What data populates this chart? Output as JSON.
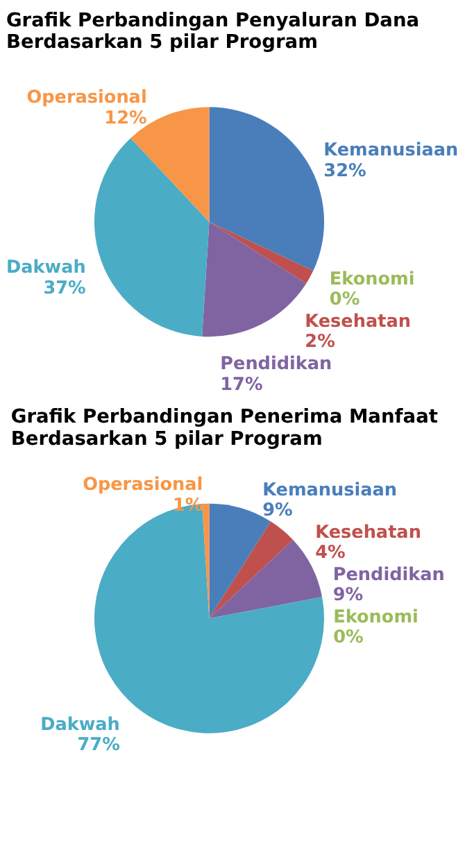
{
  "chart_data": [
    {
      "type": "pie",
      "title": "Grafik Perbandingan  Penyaluran Dana Berdasarkan 5 pilar Program",
      "categories": [
        "Kemanusiaan",
        "Ekonomi",
        "Kesehatan",
        "Pendidikan",
        "Dakwah",
        "Operasional"
      ],
      "values": [
        32,
        0,
        2,
        17,
        37,
        12
      ],
      "value_labels": [
        "32%",
        "0%",
        "2%",
        "17%",
        "37%",
        "12%"
      ],
      "colors": [
        "#4a7ebb",
        "#9bbb59",
        "#c0504d",
        "#8064a2",
        "#4bacc6",
        "#f79646"
      ]
    },
    {
      "type": "pie",
      "title": "Grafik Perbandingan Penerima Manfaat Berdasarkan 5 pilar Program",
      "categories": [
        "Kemanusiaan",
        "Kesehatan",
        "Pendidikan",
        "Ekonomi",
        "Dakwah",
        "Operasional"
      ],
      "values": [
        9,
        4,
        9,
        0,
        77,
        1
      ],
      "value_labels": [
        "9%",
        "4%",
        "9%",
        "0%",
        "77%",
        "1%"
      ],
      "colors": [
        "#4a7ebb",
        "#c0504d",
        "#8064a2",
        "#9bbb59",
        "#4bacc6",
        "#f79646"
      ]
    }
  ]
}
